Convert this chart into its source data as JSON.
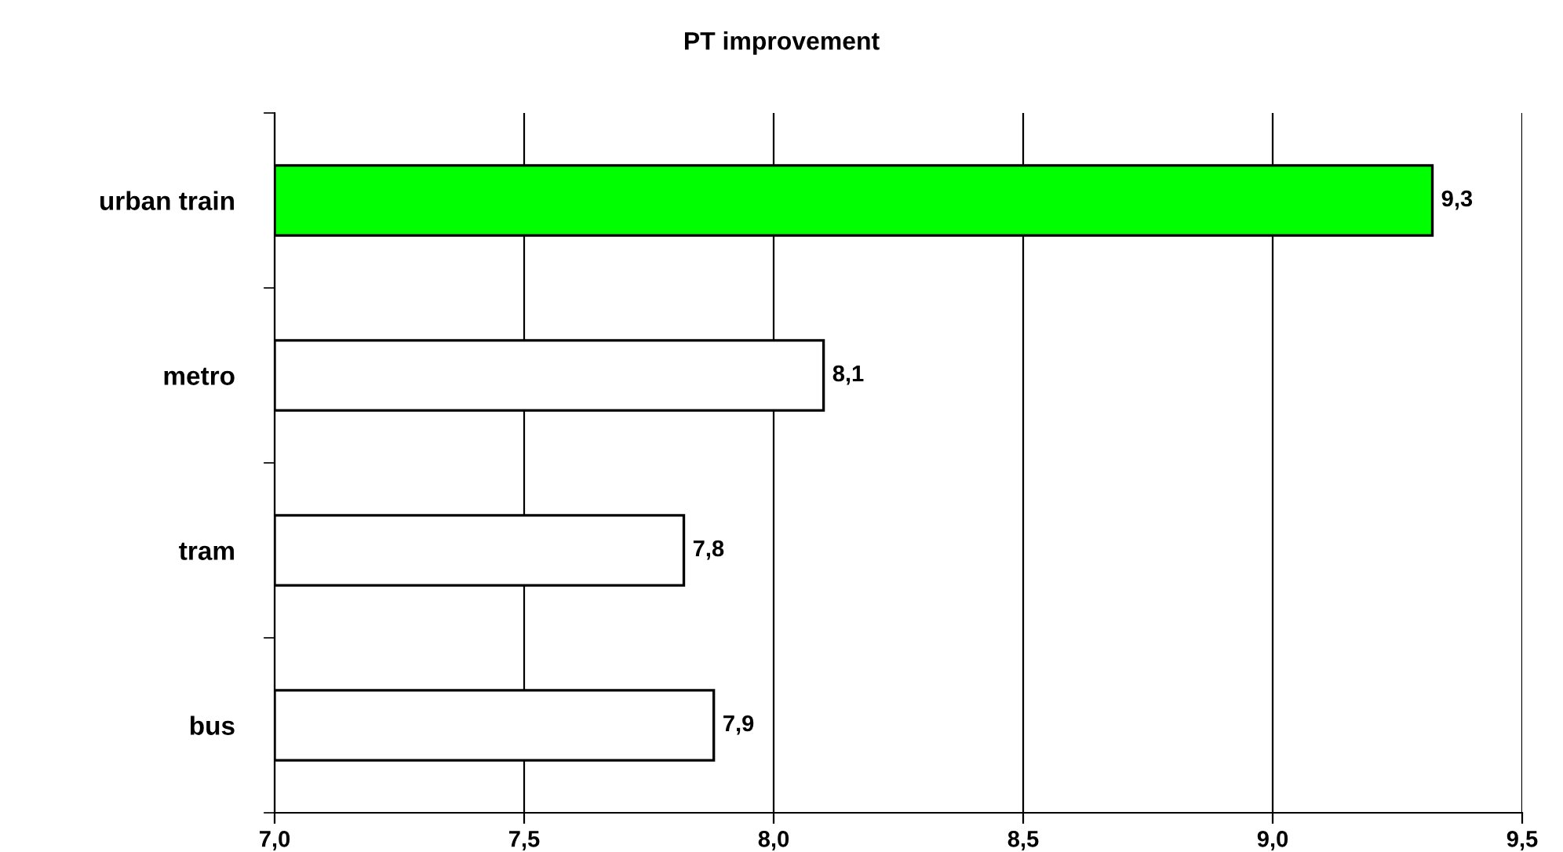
{
  "chart_data": {
    "type": "bar",
    "orientation": "horizontal",
    "title": "PT improvement",
    "categories": [
      "urban train",
      "metro",
      "tram",
      "bus"
    ],
    "values": [
      9.32,
      8.1,
      7.82,
      7.88
    ],
    "colors": [
      "#00ff00",
      "#ffffff",
      "#ffffff",
      "#ffffff"
    ],
    "value_labels": [
      "9,3",
      "8,1",
      "7,8",
      "7,9"
    ],
    "xlim": [
      7.0,
      9.5
    ],
    "xticks": [
      {
        "value": 7.0,
        "label": "7,0"
      },
      {
        "value": 7.5,
        "label": "7,5"
      },
      {
        "value": 8.0,
        "label": "8,0"
      },
      {
        "value": 8.5,
        "label": "8,5"
      },
      {
        "value": 9.0,
        "label": "9,0"
      },
      {
        "value": 9.5,
        "label": "9,5"
      }
    ],
    "grid": "x",
    "legend": false
  }
}
